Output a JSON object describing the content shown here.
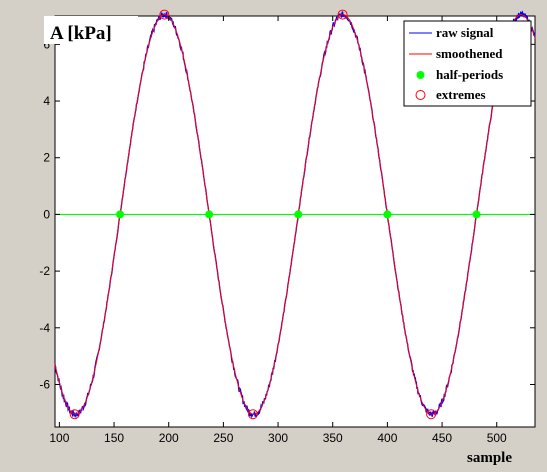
{
  "chart_data": {
    "type": "line",
    "title": "",
    "ylabel": "A [kPa]",
    "xlabel": "sample",
    "xlim": [
      96,
      535
    ],
    "ylim": [
      -7.5,
      7.0
    ],
    "xticks": [
      100,
      150,
      200,
      250,
      300,
      350,
      400,
      450,
      500
    ],
    "yticks": [
      -6,
      -4,
      -2,
      0,
      2,
      4,
      6
    ],
    "grid": false,
    "legend_position": "top-right",
    "colors": {
      "raw": "#0000ff",
      "smooth": "#ff0000",
      "half": "#00ff00",
      "extreme": "#ff0000",
      "zero_line": "#00ff00"
    },
    "signal": {
      "amplitude": 7.05,
      "period": 163,
      "zero_crossing_rising": 155.5
    },
    "series": [
      {
        "name": "raw signal",
        "kind": "line",
        "color": "#0000ff"
      },
      {
        "name": "smoothened",
        "kind": "line",
        "color": "#ff0000"
      },
      {
        "name": "half-periods",
        "kind": "marker",
        "color": "#00ff00",
        "x": [
          155.5,
          237,
          318.5,
          400,
          481.5
        ],
        "y": [
          0,
          0,
          0,
          0,
          0
        ]
      },
      {
        "name": "extremes",
        "kind": "marker-open",
        "color": "#ff0000",
        "x": [
          114,
          196,
          277,
          359,
          440
        ],
        "y": [
          -7.05,
          7.05,
          -7.05,
          7.05,
          -7.05
        ]
      }
    ]
  }
}
